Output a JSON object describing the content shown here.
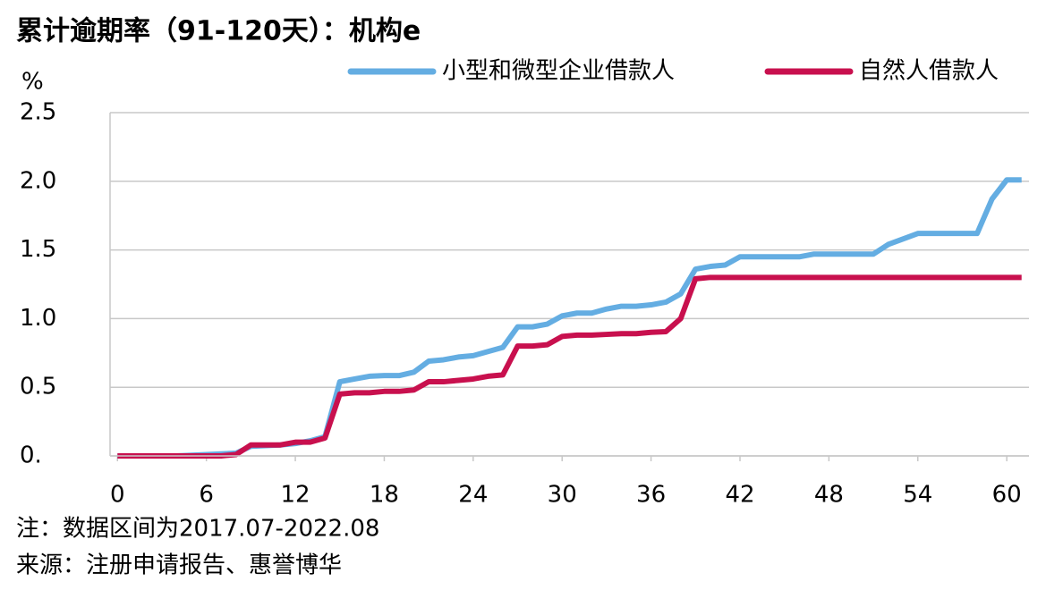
{
  "chart_data": {
    "type": "line",
    "title": "累计逾期率（91-120天）：机构e",
    "y_unit": "%",
    "notes": [
      "注：数据区间为2017.07-2022.08",
      "来源：注册申请报告、惠誉博华"
    ],
    "x": [
      0,
      1,
      2,
      3,
      4,
      5,
      6,
      7,
      8,
      9,
      10,
      11,
      12,
      13,
      14,
      15,
      16,
      17,
      18,
      19,
      20,
      21,
      22,
      23,
      24,
      25,
      26,
      27,
      28,
      29,
      30,
      31,
      32,
      33,
      34,
      35,
      36,
      37,
      38,
      39,
      40,
      41,
      42,
      43,
      44,
      45,
      46,
      47,
      48,
      49,
      50,
      51,
      52,
      53,
      54,
      55,
      56,
      57,
      58,
      59,
      60,
      61
    ],
    "series": [
      {
        "name": "小型和微型企业借款人",
        "color": "#64ade2",
        "values": [
          0,
          0,
          0,
          0,
          0,
          0.005,
          0.01,
          0.015,
          0.02,
          0.07,
          0.075,
          0.08,
          0.09,
          0.11,
          0.14,
          0.54,
          0.56,
          0.58,
          0.585,
          0.585,
          0.61,
          0.69,
          0.7,
          0.72,
          0.73,
          0.76,
          0.79,
          0.94,
          0.94,
          0.96,
          1.02,
          1.04,
          1.04,
          1.07,
          1.09,
          1.09,
          1.1,
          1.12,
          1.18,
          1.36,
          1.38,
          1.39,
          1.45,
          1.45,
          1.45,
          1.45,
          1.45,
          1.47,
          1.47,
          1.47,
          1.47,
          1.47,
          1.54,
          1.58,
          1.62,
          1.62,
          1.62,
          1.62,
          1.62,
          1.87,
          2.01,
          2.01
        ]
      },
      {
        "name": "自然人借款人",
        "color": "#c8104e",
        "values": [
          0,
          0,
          0,
          0,
          0,
          0,
          0,
          0,
          0.01,
          0.08,
          0.08,
          0.08,
          0.1,
          0.1,
          0.13,
          0.45,
          0.46,
          0.46,
          0.47,
          0.47,
          0.48,
          0.54,
          0.54,
          0.55,
          0.56,
          0.58,
          0.59,
          0.8,
          0.8,
          0.81,
          0.87,
          0.88,
          0.88,
          0.885,
          0.89,
          0.89,
          0.9,
          0.905,
          1.0,
          1.29,
          1.3,
          1.3,
          1.3,
          1.3,
          1.3,
          1.3,
          1.3,
          1.3,
          1.3,
          1.3,
          1.3,
          1.3,
          1.3,
          1.3,
          1.3,
          1.3,
          1.3,
          1.3,
          1.3,
          1.3,
          1.3,
          1.3
        ]
      }
    ],
    "xlim": [
      -0.5,
      61.5
    ],
    "xticks": [
      0,
      6,
      12,
      18,
      24,
      30,
      36,
      42,
      48,
      54,
      60
    ],
    "ylim": [
      0,
      2.5
    ],
    "yticks": [
      {
        "value": 0,
        "label": "0."
      },
      0.5,
      {
        "value": 1,
        "label": "1.0"
      },
      1.5,
      {
        "value": 2,
        "label": "2.0"
      },
      2.5
    ],
    "grid": true,
    "legend": "top-right"
  }
}
